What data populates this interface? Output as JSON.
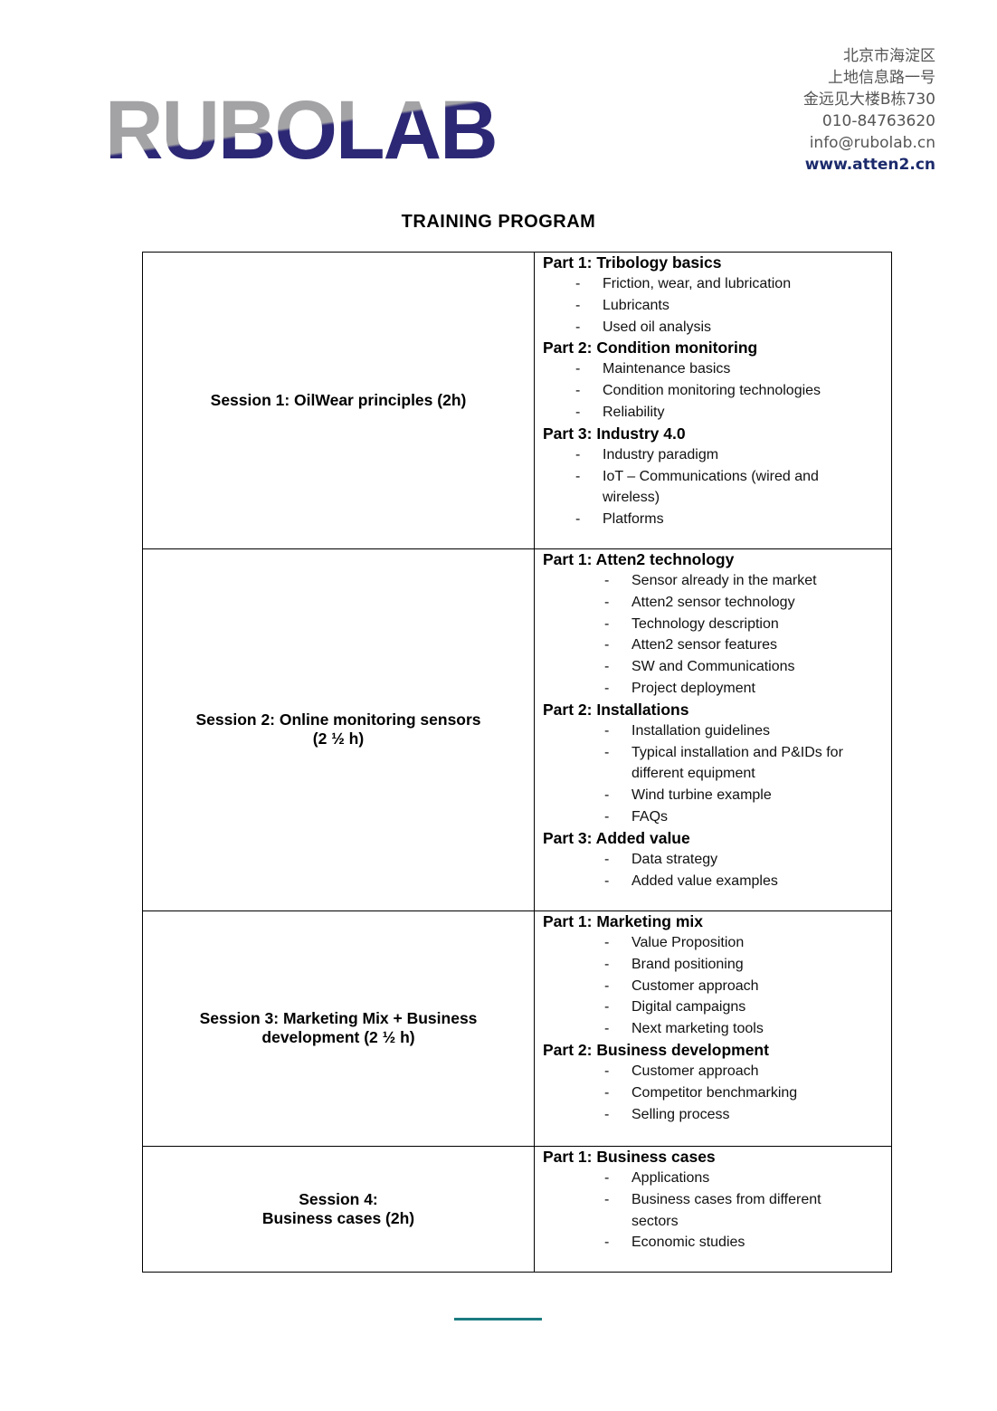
{
  "logo": {
    "text": "RUBOLAB",
    "colors": {
      "top": "#a3a3a6",
      "bottom": "#2c2875"
    }
  },
  "address": {
    "lines": [
      "北京市海淀区",
      "上地信息路一号",
      "金远见大楼B栋730",
      "010-84763620",
      "info@rubolab.cn"
    ],
    "website": "www.atten2.cn"
  },
  "title": "TRAINING PROGRAM",
  "sessions": [
    {
      "title": [
        "Session 1: OilWear principles (2h)"
      ],
      "parts": [
        {
          "title": "Part 1: Tribology basics",
          "items": [
            "Friction, wear, and lubrication",
            "Lubricants",
            "Used oil analysis"
          ]
        },
        {
          "title": "Part 2: Condition monitoring",
          "items": [
            "Maintenance basics",
            "Condition monitoring technologies",
            "Reliability"
          ]
        },
        {
          "title": "Part 3: Industry 4.0",
          "items": [
            "Industry paradigm",
            "IoT – Communications (wired and wireless)",
            "Platforms"
          ]
        }
      ]
    },
    {
      "title": [
        "Session 2: Online monitoring sensors",
        "(2 ½ h)"
      ],
      "parts": [
        {
          "title": "Part 1: Atten2 technology",
          "items": [
            "Sensor already in the market",
            "Atten2 sensor technology",
            "Technology description",
            "Atten2 sensor features",
            "SW and Communications",
            "Project deployment"
          ]
        },
        {
          "title": "Part 2: Installations",
          "items": [
            "Installation guidelines",
            "Typical installation and P&IDs for different equipment",
            "Wind turbine example",
            "FAQs"
          ]
        },
        {
          "title": "Part 3: Added value",
          "items": [
            "Data strategy",
            "Added value examples"
          ]
        }
      ]
    },
    {
      "title": [
        "Session 3: Marketing Mix + Business",
        "development (2 ½ h)"
      ],
      "parts": [
        {
          "title": "Part 1: Marketing mix",
          "items": [
            "Value Proposition",
            "Brand positioning",
            "Customer approach",
            "Digital campaigns",
            "Next marketing tools"
          ]
        },
        {
          "title": "Part 2: Business development",
          "items": [
            "Customer approach",
            "Competitor benchmarking",
            "Selling process"
          ]
        }
      ]
    },
    {
      "title": [
        "Session 4:",
        "Business cases (2h)"
      ],
      "parts": [
        {
          "title": "Part 1: Business cases",
          "items": [
            "Applications",
            "Business cases from different sectors",
            "Economic studies"
          ]
        }
      ]
    }
  ],
  "footer": {
    "accent_color": "#1a7b80"
  }
}
